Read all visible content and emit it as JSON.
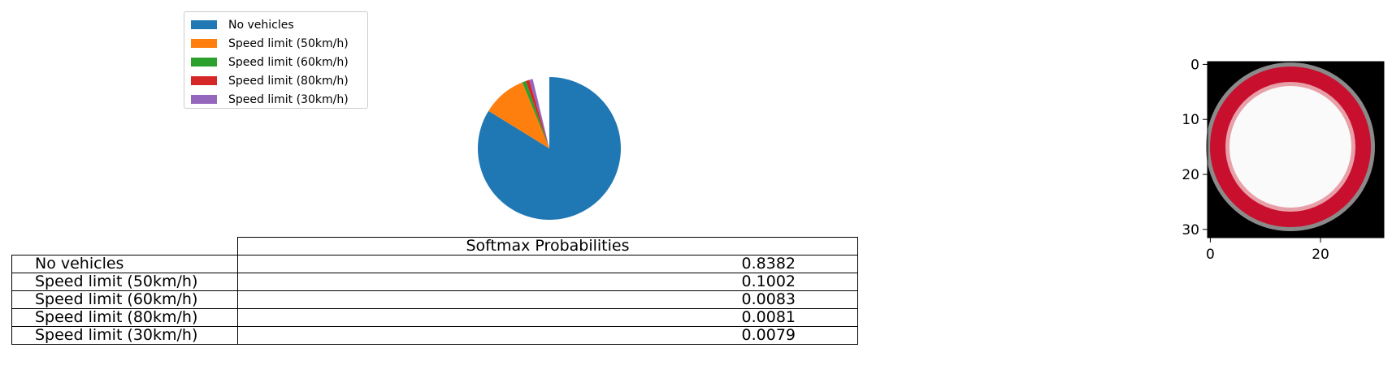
{
  "chart_data": [
    {
      "type": "pie",
      "categories": [
        "No vehicles",
        "Speed limit (50km/h)",
        "Speed limit (60km/h)",
        "Speed limit (80km/h)",
        "Speed limit (30km/h)"
      ],
      "values": [
        0.8382,
        0.1002,
        0.0083,
        0.0081,
        0.0079
      ],
      "colors": [
        "#1f77b4",
        "#ff7f0e",
        "#2ca02c",
        "#d62728",
        "#9467bd"
      ],
      "legend": "top-left",
      "start_angle_deg": 90,
      "direction": "clockwise"
    },
    {
      "type": "table",
      "column_header": "Softmax Probabilities",
      "rows": [
        {
          "label": "No vehicles",
          "value": "0.8382"
        },
        {
          "label": "Speed limit (50km/h)",
          "value": "0.1002"
        },
        {
          "label": "Speed limit (60km/h)",
          "value": "0.0083"
        },
        {
          "label": "Speed limit (80km/h)",
          "value": "0.0081"
        },
        {
          "label": "Speed limit (30km/h)",
          "value": "0.0079"
        }
      ]
    },
    {
      "type": "heatmap",
      "image": "red-ring-sign",
      "xticks": [
        "0",
        "20"
      ],
      "yticks": [
        "0",
        "10",
        "20",
        "30"
      ],
      "xlim": [
        0,
        32
      ],
      "ylim": [
        32,
        0
      ]
    }
  ]
}
